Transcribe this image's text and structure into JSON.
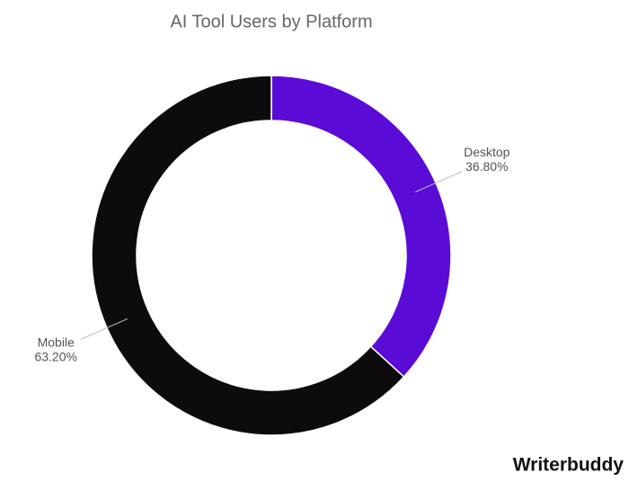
{
  "chart_data": {
    "type": "donut",
    "title": "AI Tool Users by Platform",
    "categories": [
      "Desktop",
      "Mobile"
    ],
    "values": [
      36.8,
      63.2
    ],
    "value_labels": [
      "36.80%",
      "63.20%"
    ],
    "colors": [
      "#5b0bd6",
      "#0d0b0d"
    ]
  },
  "brand": "Writerbuddy"
}
